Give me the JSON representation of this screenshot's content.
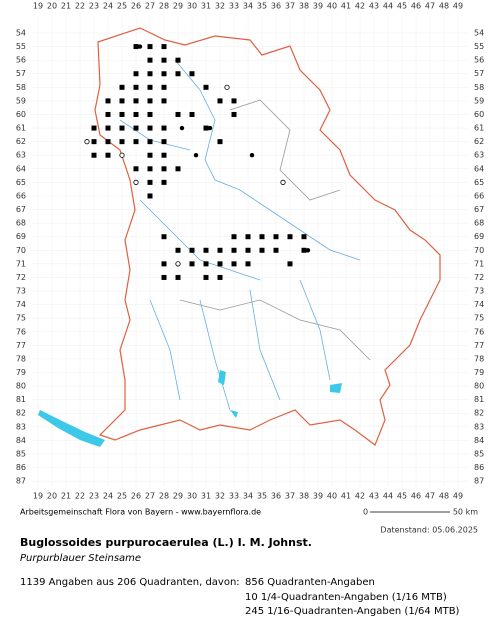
{
  "map": {
    "x_labels": [
      19,
      20,
      21,
      22,
      23,
      24,
      25,
      26,
      27,
      28,
      29,
      30,
      31,
      32,
      33,
      34,
      35,
      36,
      37,
      38,
      39,
      40,
      41,
      42,
      43,
      44,
      45,
      46,
      47,
      48,
      49
    ],
    "y_labels": [
      54,
      55,
      56,
      57,
      58,
      59,
      60,
      61,
      62,
      63,
      64,
      65,
      66,
      67,
      68,
      69,
      70,
      71,
      72,
      73,
      74,
      75,
      76,
      77,
      78,
      79,
      80,
      81,
      82,
      83,
      84,
      85,
      86,
      87
    ],
    "scale_start": "0",
    "scale_end": "50 km"
  },
  "footer": {
    "credit": "Arbeitsgemeinschaft Flora von Bayern - www.bayernflora.de",
    "date": "Datenstand: 05.06.2025",
    "title": "Buglossoides purpurocaerulea (L.) I. M. Johnst.",
    "subtitle": "Purpurblauer  Steinsame",
    "summary": "1139 Angaben aus 206 Quadranten, davon:",
    "counts": [
      "856 Quadranten-Angaben",
      "10 1/4-Quadranten-Angaben (1/16 MTB)",
      "245 1/16-Quadranten-Angaben (1/64 MTB)"
    ]
  }
}
